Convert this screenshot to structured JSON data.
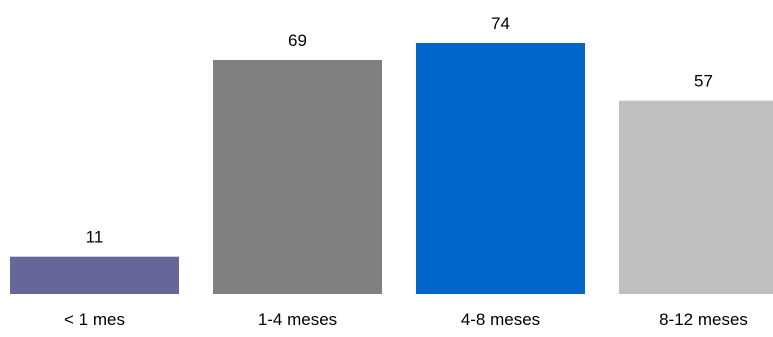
{
  "chart_data": {
    "type": "bar",
    "title": "",
    "xlabel": "",
    "ylabel": "",
    "categories": [
      "< 1 mes",
      "1-4 meses",
      "4-8 meses",
      "8-12 meses"
    ],
    "values": [
      11,
      69,
      74,
      57
    ],
    "value_labels": [
      "11",
      "69",
      "74",
      "57"
    ],
    "colors": [
      "#666699",
      "#808080",
      "#0066CC",
      "#C0C0C0"
    ],
    "ylim": [
      0,
      74
    ],
    "grid": false,
    "legend": "none"
  }
}
